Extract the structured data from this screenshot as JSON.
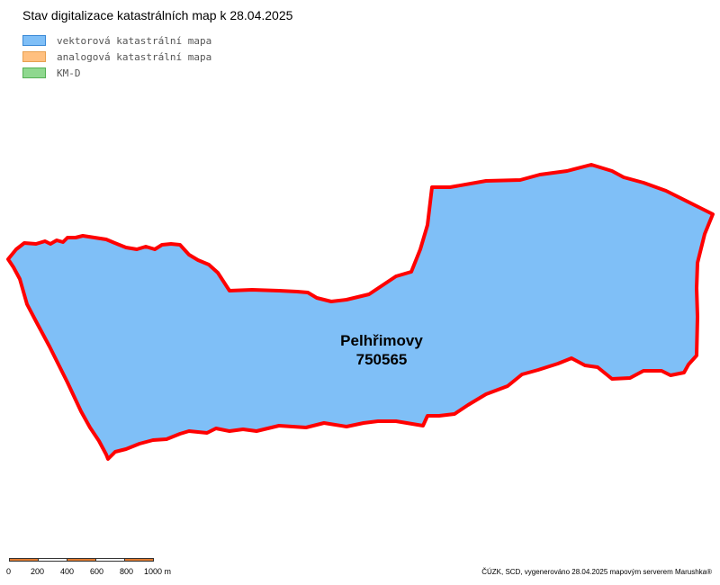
{
  "title": "Stav digitalizace katastrálních map k 28.04.2025",
  "legend": [
    {
      "label": "vektorová katastrální mapa",
      "fill": "#7fbff7",
      "stroke": "#3a8ad6"
    },
    {
      "label": "analogová katastrální mapa",
      "fill": "#ffc080",
      "stroke": "#e8a050"
    },
    {
      "label": "KM-D",
      "fill": "#8fd88f",
      "stroke": "#55b055"
    }
  ],
  "area": {
    "name": "Pelhřimovy",
    "code": "750565",
    "fill": "#7fbff7",
    "stroke": "#ff0000"
  },
  "scale": {
    "labels": [
      "0",
      "200",
      "400",
      "600",
      "800",
      "1000 m"
    ],
    "colors": [
      "#e07b30",
      "#ffffff",
      "#e07b30",
      "#ffffff",
      "#e07b30"
    ]
  },
  "footer": "ČÚZK, SCD, vygenerováno 28.04.2025 mapovým serverem Marushka®"
}
